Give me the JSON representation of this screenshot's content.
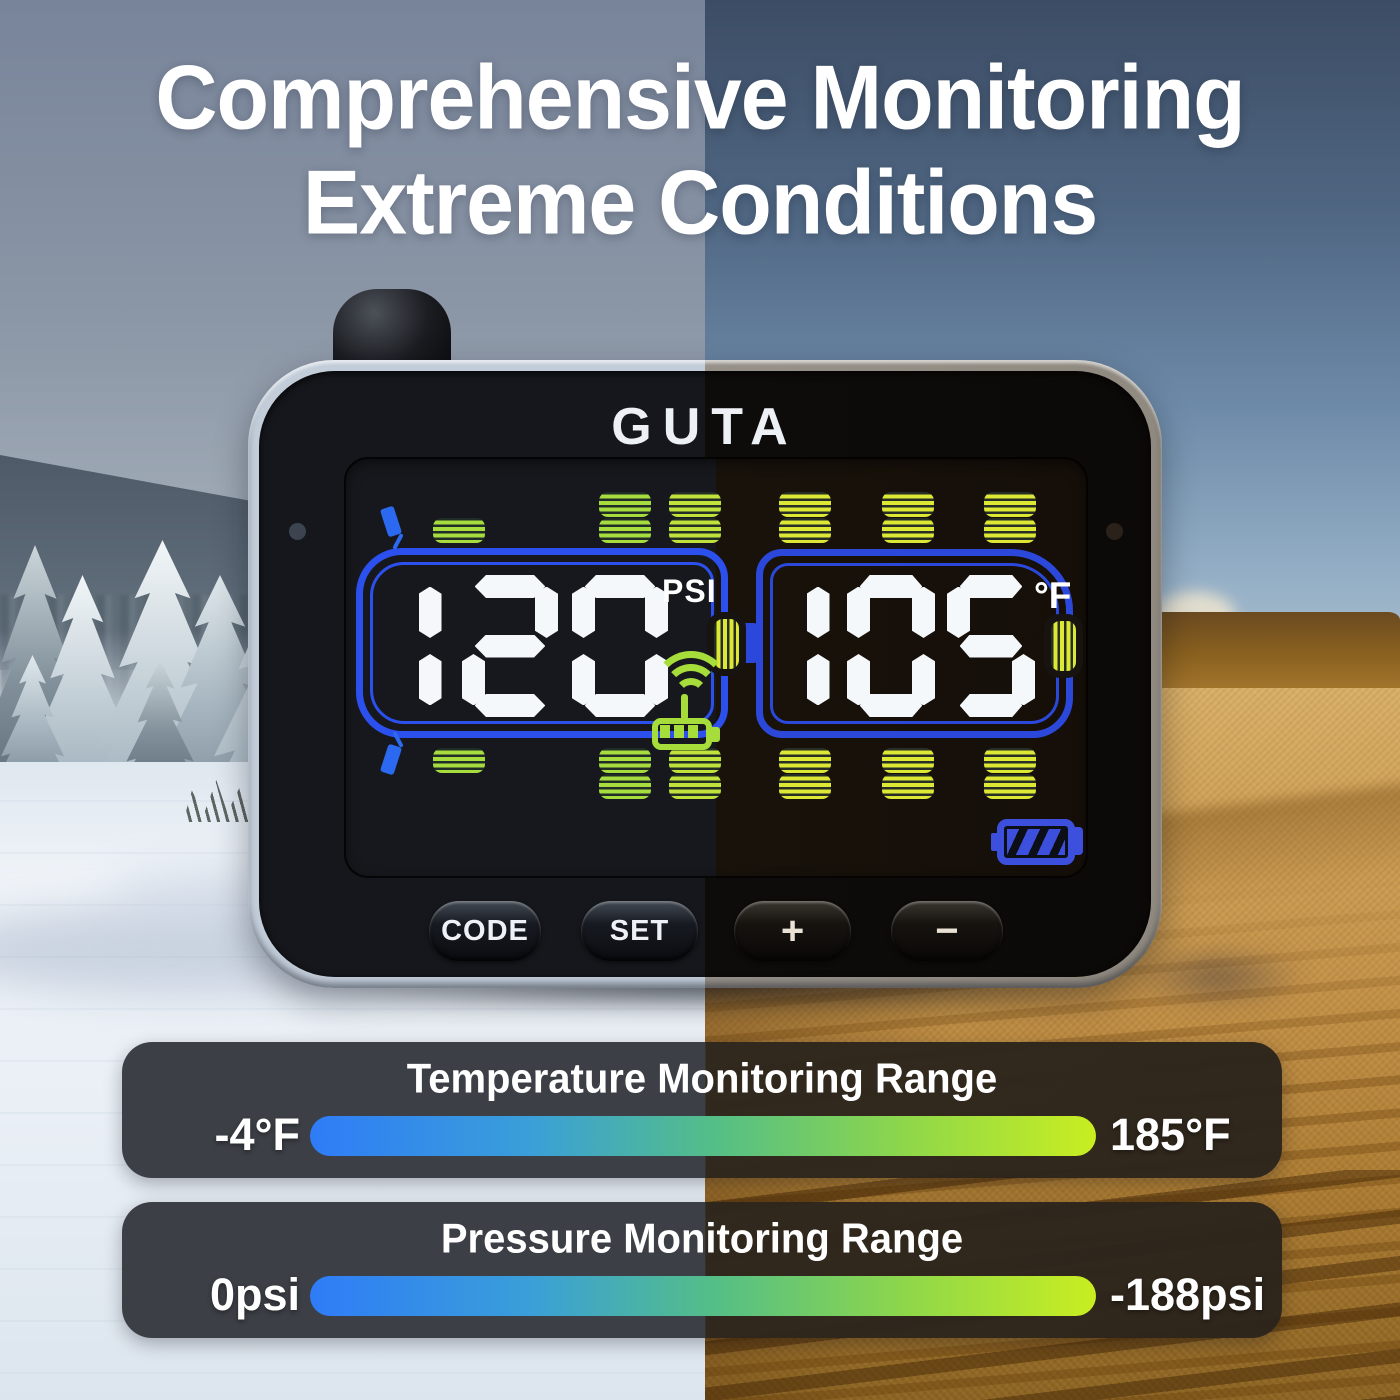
{
  "title": {
    "line1": "Comprehensive Monitoring",
    "line2": "Extreme Conditions"
  },
  "device": {
    "brand": "GUTA",
    "screen": {
      "pressure": {
        "value": "120",
        "unit": "PSI"
      },
      "temperature": {
        "value": "105",
        "unit": "°F"
      },
      "icon_names": [
        "antenna",
        "tire-icon",
        "mirror-icon",
        "truck-outline-icon",
        "trailer-outline-icon",
        "signal-repeater-icon",
        "battery-icon"
      ]
    },
    "buttons": [
      {
        "label": "CODE"
      },
      {
        "label": "SET"
      },
      {
        "label": "+"
      },
      {
        "label": "−"
      }
    ]
  },
  "ranges": [
    {
      "title": "Temperature Monitoring Range",
      "min_label": "-4°F",
      "max_label": "185°F"
    },
    {
      "title": "Pressure Monitoring Range",
      "min_label": "0psi",
      "max_label": "-188psi"
    }
  ],
  "colors": {
    "tire_green": "#a6dc3e",
    "tire_green_yellow": "#c0e23a",
    "tire_yellow": "#dce834",
    "lcd_blue": "#2b50ee",
    "battery_blue": "#3c50dd",
    "signal_green": "#a7dd3b",
    "bar_gradient": [
      "#2f7cf7",
      "#3a9fd9",
      "#55bf85",
      "#8fd74a",
      "#c9ee21"
    ]
  }
}
